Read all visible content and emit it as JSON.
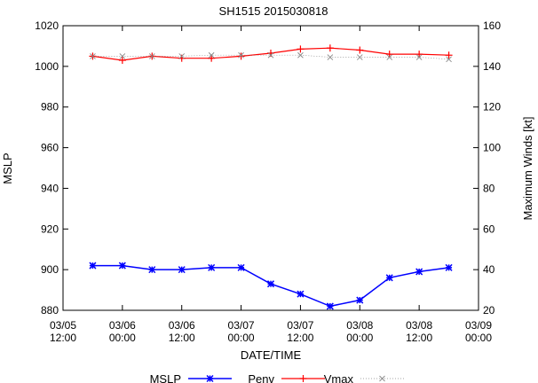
{
  "chart_data": {
    "type": "line",
    "title": "SH1515 2015030818",
    "xlabel": "DATE/TIME",
    "ylabel_left": "MSLP",
    "ylabel_right": "Maximum Winds [kt]",
    "ylim_left": [
      880,
      1020
    ],
    "ylim_right": [
      20,
      160
    ],
    "yticks_left": [
      "880",
      "900",
      "920",
      "940",
      "960",
      "980",
      "1000",
      "1020"
    ],
    "yticks_right": [
      "20",
      "40",
      "60",
      "80",
      "100",
      "120",
      "140",
      "160"
    ],
    "xlim": [
      "2015-03-05 12:00",
      "2015-03-09 00:00"
    ],
    "xticks": [
      {
        "date": "03/05",
        "time": "12:00"
      },
      {
        "date": "03/06",
        "time": "00:00"
      },
      {
        "date": "03/06",
        "time": "12:00"
      },
      {
        "date": "03/07",
        "time": "00:00"
      },
      {
        "date": "03/07",
        "time": "12:00"
      },
      {
        "date": "03/08",
        "time": "00:00"
      },
      {
        "date": "03/08",
        "time": "12:00"
      },
      {
        "date": "03/09",
        "time": "00:00"
      }
    ],
    "x": [
      "2015-03-05 18:00",
      "2015-03-06 00:00",
      "2015-03-06 06:00",
      "2015-03-06 12:00",
      "2015-03-06 18:00",
      "2015-03-07 00:00",
      "2015-03-07 06:00",
      "2015-03-07 12:00",
      "2015-03-07 18:00",
      "2015-03-08 00:00",
      "2015-03-08 06:00",
      "2015-03-08 12:00",
      "2015-03-08 18:00"
    ],
    "series": [
      {
        "name": "MSLP",
        "axis": "left",
        "color": "#0000ff",
        "values": [
          902,
          902,
          900,
          900,
          901,
          901,
          893,
          888,
          882,
          885,
          896,
          899,
          901
        ]
      },
      {
        "name": "Penv",
        "axis": "left",
        "color": "#ff0000",
        "values": [
          1005,
          1003,
          1005,
          1004,
          1004,
          1005,
          1006.5,
          1008.5,
          1009,
          1008,
          1006,
          1006,
          1005.5
        ]
      },
      {
        "name": "Vmax",
        "axis": "right",
        "color": "#888888",
        "values": [
          145,
          145,
          145,
          145,
          145.5,
          145.5,
          145.5,
          145.5,
          144.5,
          144.5,
          144.5,
          144.5,
          143.5
        ]
      }
    ],
    "legend": {
      "position": "bottom",
      "order": [
        "MSLP",
        "Penv",
        "Vmax"
      ]
    },
    "grid": false
  }
}
